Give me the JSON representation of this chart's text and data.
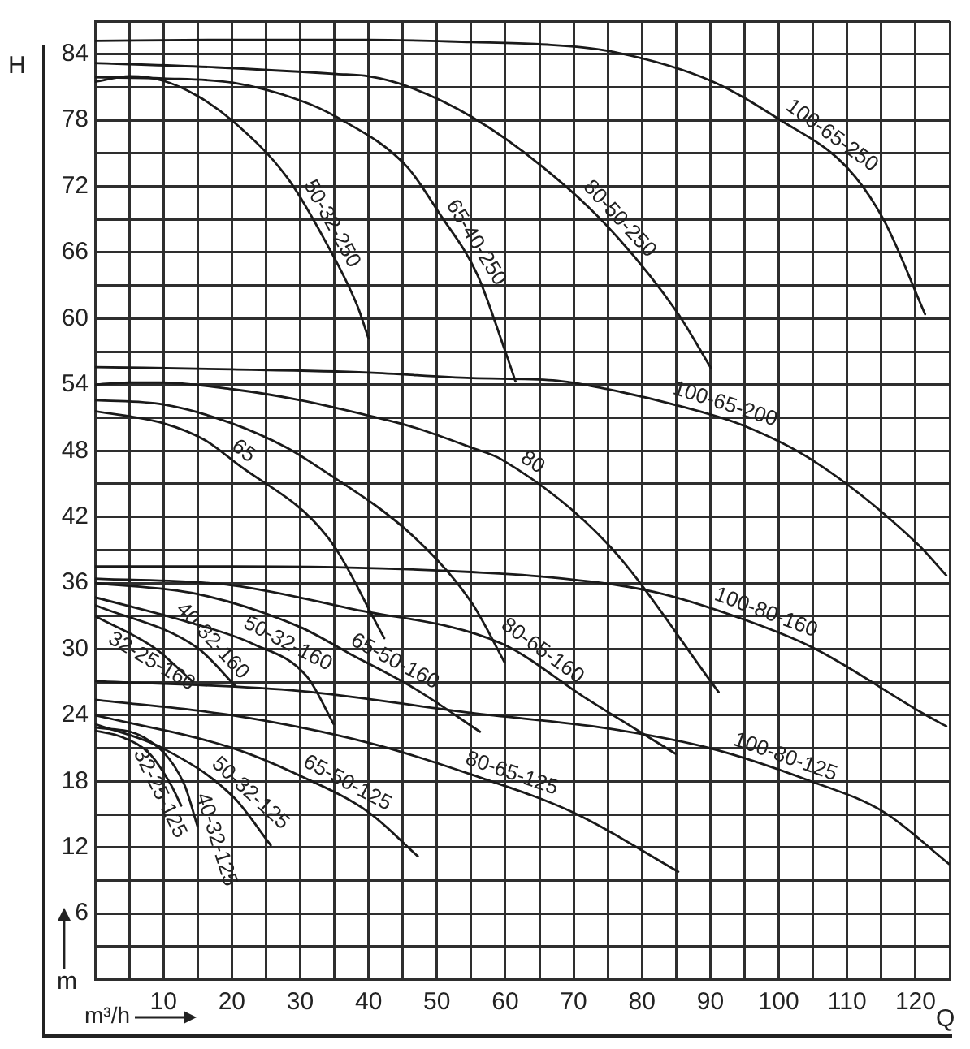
{
  "chart_data": {
    "type": "line",
    "xlabel": "Q",
    "ylabel": "H",
    "annotations": [
      "m",
      "m³/h",
      {
        "text": "100-65-250",
        "x": 106.5,
        "y": 75.3
      },
      {
        "text": "80-50-250",
        "x": 75.2,
        "y": 68.2
      },
      {
        "text": "65-40-250",
        "x": 53.6,
        "y": 66.3
      },
      {
        "text": "50-32-250",
        "x": 32.8,
        "y": 67.9
      },
      {
        "text": "100-65-200",
        "x": 91.7,
        "y": 50.9
      },
      {
        "text": "80",
        "x": 62.5,
        "y": 45.7
      },
      {
        "text": "65",
        "x": 20.6,
        "y": 46.9
      },
      {
        "text": "100-80-160",
        "x": 97.5,
        "y": 32.0
      },
      {
        "text": "80-65-160",
        "x": 66.5,
        "y": 27.7
      },
      {
        "text": "65-50-160",
        "x": 43.0,
        "y": 27.7
      },
      {
        "text": "50-32-160",
        "x": 27.0,
        "y": 29.0
      },
      {
        "text": "40-32-160",
        "x": 17.5,
        "y": 28.5
      },
      {
        "text": "32-25-160",
        "x": 7.0,
        "y": 30.7
      },
      {
        "text": "100-80-125",
        "x": 100.2,
        "y": 18.9
      },
      {
        "text": "80-65-125",
        "x": 59.8,
        "y": 17.5
      },
      {
        "text": "65-50-125",
        "x": 36.0,
        "y": 16.5
      },
      {
        "text": "50-32-125",
        "x": 19.1,
        "y": 17.1
      },
      {
        "text": "40-32-125",
        "x": 15.0,
        "y": 13.9
      },
      {
        "text": "32-25-125",
        "x": 12.6,
        "y": 15.8
      }
    ],
    "xlim": [
      0,
      125
    ],
    "ylim": [
      0,
      87
    ],
    "xticks": [
      {
        "value": 5,
        "label": null
      },
      10,
      {
        "value": 15,
        "label": null
      },
      20,
      {
        "value": 25,
        "label": null
      },
      30,
      {
        "value": 35,
        "label": null
      },
      40,
      {
        "value": 45,
        "label": null
      },
      50,
      {
        "value": 55,
        "label": null
      },
      60,
      {
        "value": 65,
        "label": null
      },
      70,
      {
        "value": 75,
        "label": null
      },
      80,
      {
        "value": 85,
        "label": null
      },
      90,
      {
        "value": 95,
        "label": null
      },
      100,
      {
        "value": 105,
        "label": null
      },
      110,
      {
        "value": 115,
        "label": null
      },
      120,
      {
        "value": 125,
        "label": null
      }
    ],
    "yticks": [
      {
        "value": 3,
        "label": null
      },
      6,
      {
        "value": 9,
        "label": null
      },
      12,
      {
        "value": 15,
        "label": null
      },
      18,
      {
        "value": 21,
        "label": null
      },
      24,
      {
        "value": 27,
        "label": null
      },
      30,
      {
        "value": 33,
        "label": null
      },
      36,
      {
        "value": 39,
        "label": null
      },
      42,
      {
        "value": 45,
        "label": null
      },
      48,
      {
        "value": 51,
        "label": null
      },
      54,
      {
        "value": 57,
        "label": null
      },
      60,
      {
        "value": 63,
        "label": null
      },
      66,
      {
        "value": 69,
        "label": null
      },
      72,
      {
        "value": 75,
        "label": null
      },
      78,
      {
        "value": 81,
        "label": null
      },
      84,
      {
        "value": 87,
        "label": null
      }
    ],
    "grid": true,
    "marker": "none",
    "line_style": "solid",
    "series": [
      {
        "color": "#1a1a1a",
        "x": [
          0,
          20,
          40,
          55,
          65,
          75,
          90,
          100,
          110,
          115.4,
          121.4
        ],
        "values": [
          85.2,
          85.3,
          85.3,
          85.1,
          84.9,
          84.3,
          81.6,
          78.1,
          73.7,
          68.9,
          60.4
        ]
      },
      {
        "color": "#1a1a1a",
        "x": [
          0,
          17.8,
          35.3,
          40,
          45.6,
          55.1,
          65.4,
          74.9,
          85.1,
          90.1
        ],
        "values": [
          83.2,
          82.8,
          82.2,
          82.0,
          81.1,
          78.3,
          73.8,
          68.4,
          60.6,
          55.5
        ]
      },
      {
        "color": "#1a1a1a",
        "x": [
          0,
          10,
          20.2,
          30,
          35.3,
          45.6,
          50.3,
          55.9,
          59.9,
          61.5
        ],
        "values": [
          81.9,
          81.8,
          81.4,
          79.8,
          78.3,
          73.8,
          69.6,
          64.0,
          57.2,
          54.3
        ]
      },
      {
        "color": "#1a1a1a",
        "x": [
          0,
          5.1,
          9.9,
          15,
          20.2,
          28.1,
          33.7,
          38.4,
          40.0
        ],
        "values": [
          81.5,
          82.0,
          81.6,
          80.2,
          77.9,
          72.8,
          67.0,
          61.1,
          58.2
        ]
      },
      {
        "color": "#1a1a1a",
        "x": [
          0,
          20,
          40,
          55.1,
          67,
          74.9,
          85.3,
          94.8,
          105.3,
          120.2,
          124.5
        ],
        "values": [
          55.6,
          55.4,
          55.1,
          54.6,
          54.4,
          53.6,
          52.1,
          50.3,
          47.0,
          39.6,
          36.7
        ]
      },
      {
        "color": "#1a1a1a",
        "x": [
          0,
          5,
          9.4,
          20,
          30,
          40,
          46.8,
          55,
          59.5,
          74.9,
          91.2
        ],
        "values": [
          54.0,
          54.2,
          54.2,
          53.6,
          52.6,
          51.2,
          50.1,
          48.3,
          47.2,
          39.6,
          26.1
        ]
      },
      {
        "color": "#1a1a1a",
        "x": [
          0,
          10,
          20,
          28,
          31.7,
          46.8,
          55.1,
          59.9
        ],
        "values": [
          52.6,
          52.2,
          50.5,
          48.3,
          46.9,
          40.1,
          34.2,
          28.8
        ]
      },
      {
        "color": "#1a1a1a",
        "x": [
          0,
          10,
          16,
          20.6,
          34.1,
          42.3
        ],
        "values": [
          51.6,
          50.5,
          49.0,
          46.9,
          40.1,
          31.0
        ]
      },
      {
        "color": "#1a1a1a",
        "x": [
          0,
          20,
          37.2,
          55,
          67,
          81.7,
          94.4,
          105.1,
          121,
          124.5
        ],
        "values": [
          37.5,
          37.5,
          37.4,
          37.0,
          36.5,
          35.2,
          32.8,
          30.1,
          24.2,
          23.0
        ]
      },
      {
        "color": "#1a1a1a",
        "x": [
          0,
          20,
          37.2,
          59.5,
          71.4,
          84.9
        ],
        "values": [
          36.4,
          35.8,
          33.7,
          30.5,
          25.7,
          20.5
        ]
      },
      {
        "color": "#1a1a1a",
        "x": [
          0,
          15,
          30,
          37.2,
          46.8,
          56.3
        ],
        "values": [
          36.0,
          35.0,
          32.0,
          29.6,
          26.4,
          22.5
        ]
      },
      {
        "color": "#1a1a1a",
        "x": [
          0,
          13.4,
          23.0,
          31,
          34.9
        ],
        "values": [
          34.7,
          32.5,
          30.5,
          27.5,
          23.2
        ]
      },
      {
        "color": "#1a1a1a",
        "x": [
          0,
          15.0,
          20.6
        ],
        "values": [
          34.0,
          30.1,
          26.6
        ]
      },
      {
        "color": "#1a1a1a",
        "x": [
          0,
          8.7,
          14.2
        ],
        "values": [
          33.0,
          30.1,
          27.1
        ]
      },
      {
        "color": "#1a1a1a",
        "x": [
          0,
          30,
          55.1,
          75,
          90,
          104.3,
          115.4,
          124.9
        ],
        "values": [
          27.1,
          26.2,
          24.2,
          22.8,
          21.0,
          18.1,
          15.2,
          10.5
        ]
      },
      {
        "color": "#1a1a1a",
        "x": [
          0,
          20,
          40,
          55.1,
          70.2,
          85.3
        ],
        "values": [
          25.4,
          24.0,
          21.5,
          18.6,
          15.1,
          9.8
        ]
      },
      {
        "color": "#1a1a1a",
        "x": [
          0,
          20.2,
          30,
          40,
          47.2
        ],
        "values": [
          24.0,
          21.0,
          18.5,
          15.2,
          11.2
        ]
      },
      {
        "color": "#1a1a1a",
        "x": [
          0,
          9.9,
          20.2,
          25.7
        ],
        "values": [
          23.2,
          21.0,
          16.6,
          12.2
        ]
      },
      {
        "color": "#1a1a1a",
        "x": [
          0,
          7.1,
          13.0,
          15.0
        ],
        "values": [
          22.9,
          22.0,
          17.8,
          13.9
        ]
      },
      {
        "color": "#1a1a1a",
        "x": [
          0,
          4,
          8,
          11,
          12.6
        ],
        "values": [
          22.6,
          22.0,
          20.5,
          17.8,
          15.8
        ]
      }
    ]
  }
}
